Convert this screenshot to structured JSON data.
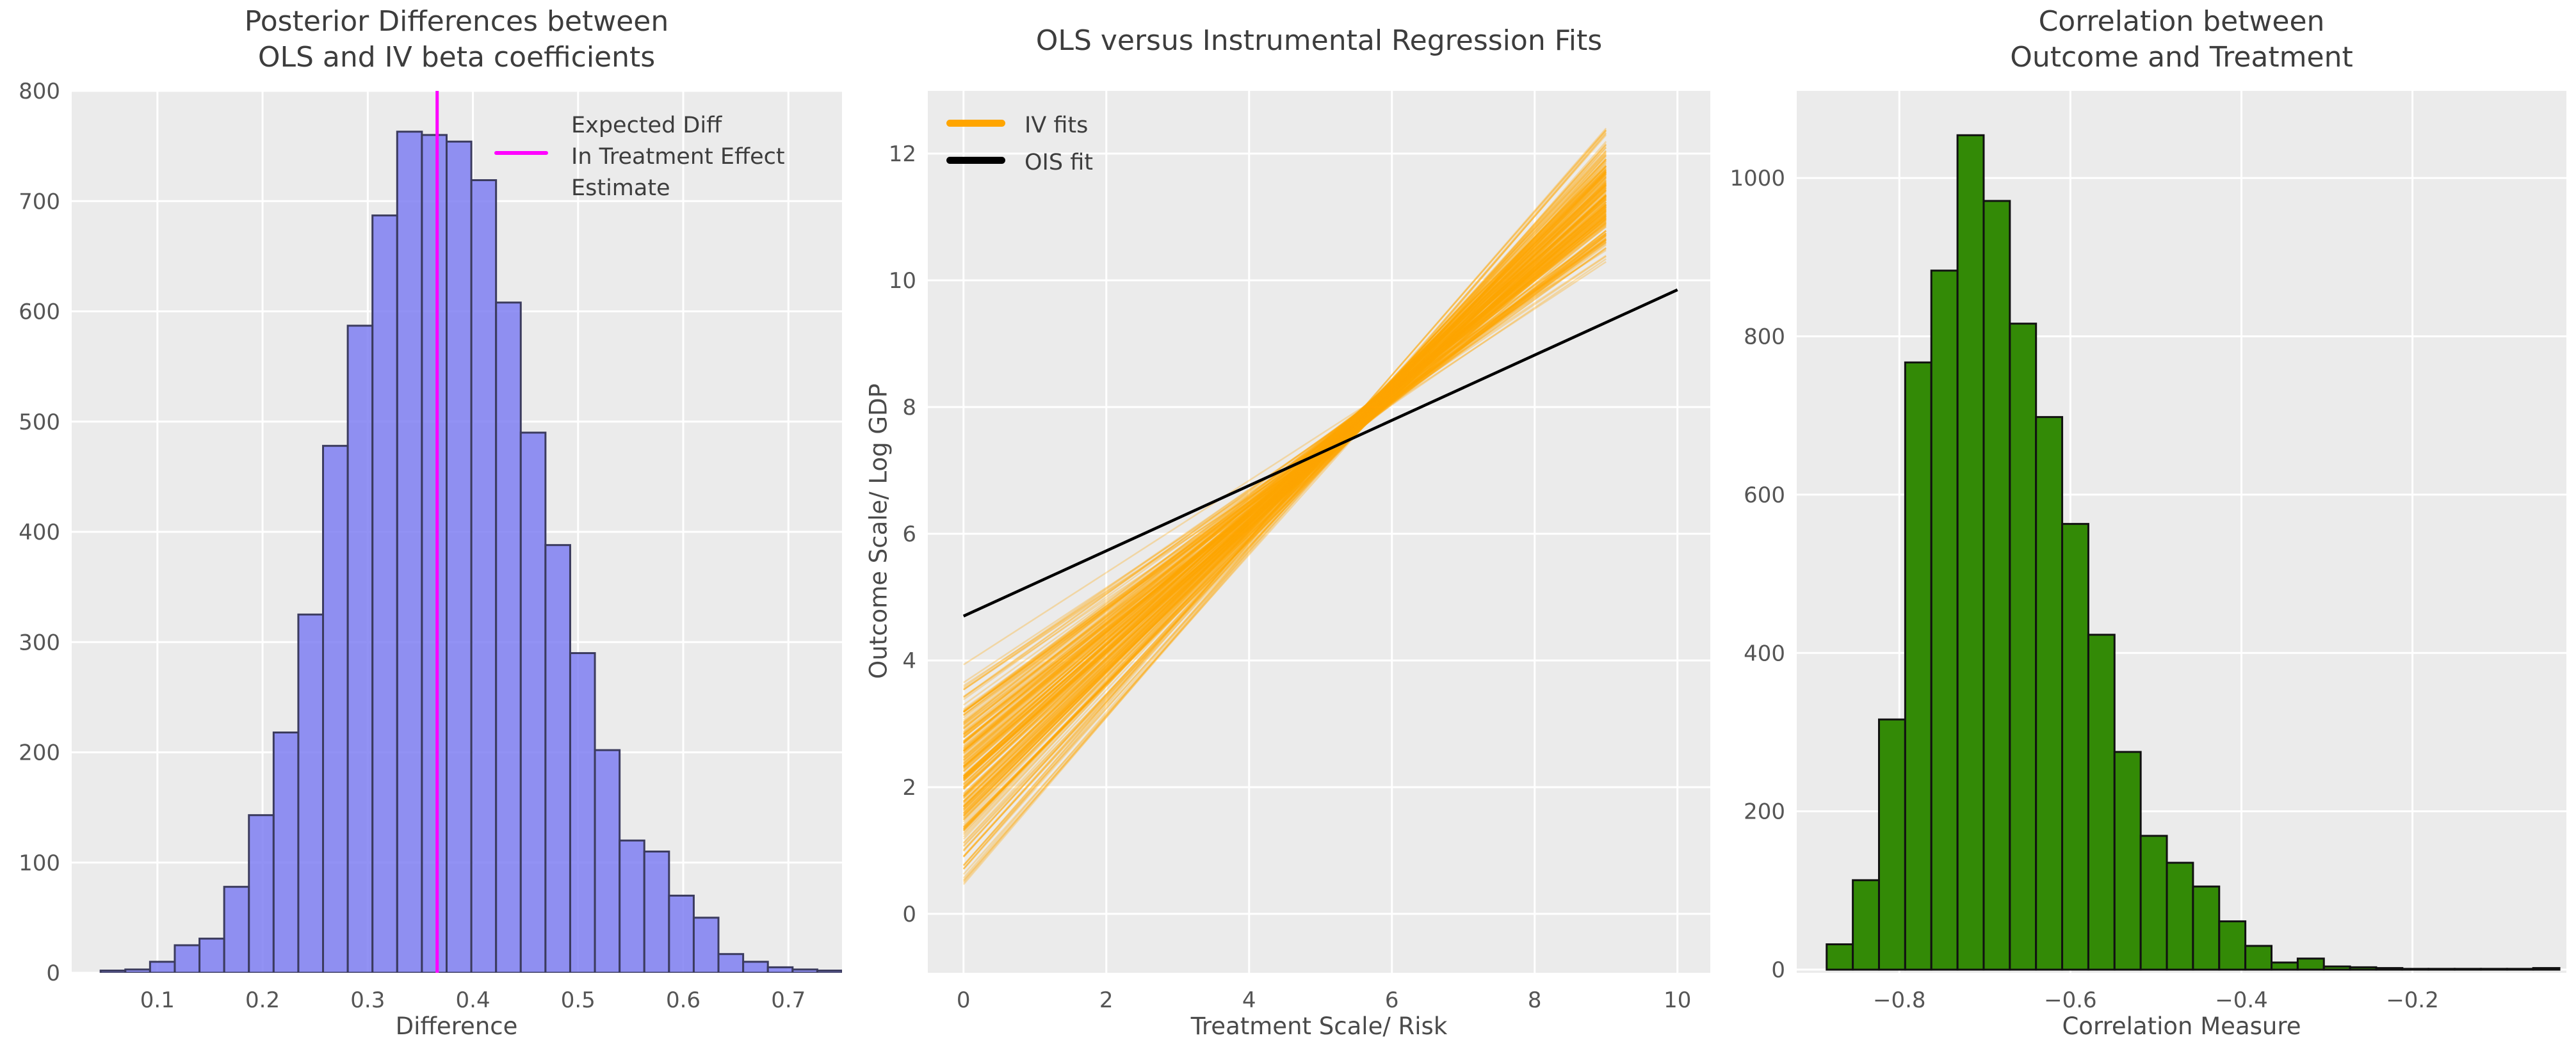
{
  "figure": {
    "background": "#ffffff",
    "panel_background": "#ebebeb",
    "grid_color": "#ffffff",
    "tick_color": "#555555"
  },
  "chart_data": [
    {
      "id": "posterior-differences",
      "type": "bar",
      "title": "Posterior Differences between\nOLS and IV beta coefficients",
      "xlabel": "Difference",
      "ylabel": "",
      "xlim": [
        0.0185,
        0.751
      ],
      "ylim": [
        0,
        800
      ],
      "grid": true,
      "xticks": {
        "values": [
          0.1,
          0.2,
          0.3,
          0.4,
          0.5,
          0.6,
          0.7
        ],
        "labels": [
          "0.1",
          "0.2",
          "0.3",
          "0.4",
          "0.5",
          "0.6",
          "0.7"
        ]
      },
      "yticks": {
        "values": [
          0,
          100,
          200,
          300,
          400,
          500,
          600,
          700,
          800
        ],
        "labels": [
          "0",
          "100",
          "200",
          "300",
          "400",
          "500",
          "600",
          "700",
          "800"
        ]
      },
      "bins": {
        "start": 0.046,
        "width": 0.0235
      },
      "counts": [
        2,
        3,
        10,
        25,
        31,
        78,
        143,
        218,
        325,
        478,
        587,
        687,
        763,
        760,
        754,
        719,
        608,
        490,
        388,
        290,
        202,
        120,
        110,
        70,
        50,
        17,
        10,
        5,
        3,
        2
      ],
      "bar_fill": "#7f7ff2",
      "bar_fill_opacity": 0.85,
      "bar_edge": "#3b3b5e",
      "vline": {
        "x": 0.366,
        "color": "#ff00ff",
        "width": 5
      },
      "legend": {
        "label": "Expected Diff\n In Treatment Effect\n Estimate",
        "line_color": "#ff00ff"
      }
    },
    {
      "id": "regression-fits",
      "type": "line",
      "title": "OLS versus Instrumental Regression Fits",
      "xlabel": "Treatment Scale/ Risk",
      "ylabel": "Outcome Scale/ Log GDP",
      "xlim": [
        -0.5,
        10.46
      ],
      "ylim": [
        -0.93,
        12.99
      ],
      "grid": true,
      "xticks": {
        "values": [
          0,
          2,
          4,
          6,
          8,
          10
        ],
        "labels": [
          "0",
          "2",
          "4",
          "6",
          "8",
          "10"
        ]
      },
      "yticks": {
        "values": [
          0,
          2,
          4,
          6,
          8,
          10,
          12
        ],
        "labels": [
          "0",
          "2",
          "4",
          "6",
          "8",
          "10",
          "12"
        ]
      },
      "iv_fits": {
        "legend_label": "IV fits",
        "n_lines": 230,
        "x_start": 0,
        "x_end": 9,
        "intercept_range": [
          0.3,
          4.0
        ],
        "end_range": [
          10.2,
          12.4
        ],
        "cross_region_x": 5.7,
        "color": "#ffa500",
        "opacity": 0.3,
        "width": 2.5
      },
      "ols_fit": {
        "legend_label": "OIS fit",
        "x": [
          0,
          10
        ],
        "y": [
          4.7,
          9.85
        ],
        "color": "#000000",
        "width": 4.5
      }
    },
    {
      "id": "correlation",
      "type": "bar",
      "title": "Correlation between\nOutcome and Treatment",
      "xlabel": "Correlation Measure",
      "ylabel": "",
      "xlim": [
        -0.92,
        -0.02
      ],
      "ylim": [
        -4,
        1110
      ],
      "grid": true,
      "xticks": {
        "values": [
          -0.8,
          -0.6,
          -0.4,
          -0.2
        ],
        "labels": [
          "−0.8",
          "−0.6",
          "−0.4",
          "−0.2"
        ]
      },
      "yticks": {
        "values": [
          0,
          200,
          400,
          600,
          800,
          1000
        ],
        "labels": [
          "0",
          "200",
          "400",
          "600",
          "800",
          "1000"
        ]
      },
      "bins": {
        "start": -0.885,
        "width": 0.0306
      },
      "counts": [
        32,
        113,
        316,
        767,
        883,
        1054,
        971,
        816,
        698,
        563,
        423,
        275,
        169,
        135,
        105,
        61,
        30,
        9,
        14,
        4,
        3,
        2,
        1,
        1,
        1,
        1,
        1,
        2
      ],
      "bar_fill": "#338a06",
      "bar_fill_opacity": 1.0,
      "bar_edge": "#111111"
    }
  ]
}
